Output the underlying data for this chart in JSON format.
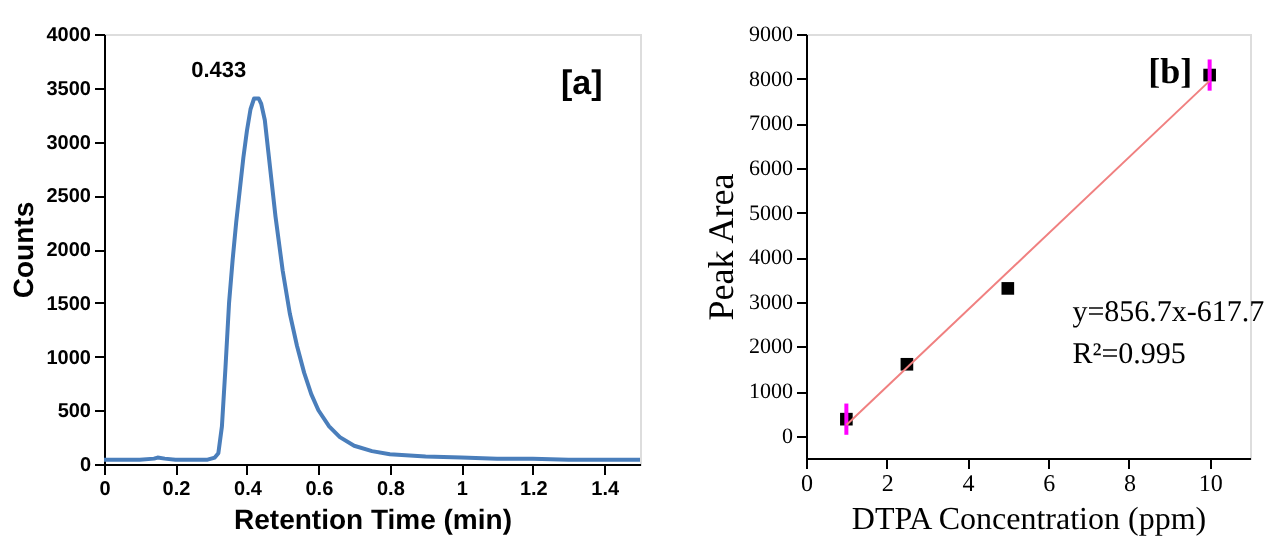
{
  "chart_data": [
    {
      "type": "line",
      "xlabel": "Retention Time (min)",
      "ylabel": "Counts",
      "xlim": [
        0,
        1.5
      ],
      "xticks": [
        0,
        0.2,
        0.4,
        0.6,
        0.8,
        1,
        1.2,
        1.4
      ],
      "ylim": [
        0,
        4000
      ],
      "yticks": [
        0,
        500,
        1000,
        1500,
        2000,
        2500,
        3000,
        3500,
        4000
      ],
      "grid": false,
      "line_style": "solid",
      "series": [
        {
          "color": "#4a7ebb",
          "x": [
            0,
            0.1,
            0.14,
            0.15,
            0.17,
            0.2,
            0.25,
            0.29,
            0.31,
            0.32,
            0.33,
            0.34,
            0.35,
            0.36,
            0.37,
            0.38,
            0.39,
            0.4,
            0.41,
            0.42,
            0.433,
            0.44,
            0.45,
            0.46,
            0.47,
            0.48,
            0.5,
            0.52,
            0.54,
            0.56,
            0.58,
            0.6,
            0.63,
            0.66,
            0.7,
            0.75,
            0.8,
            0.9,
            1.0,
            1.1,
            1.2,
            1.3,
            1.4,
            1.5
          ],
          "values": [
            40,
            40,
            50,
            60,
            50,
            40,
            40,
            40,
            60,
            100,
            350,
            900,
            1500,
            1900,
            2250,
            2550,
            2850,
            3100,
            3300,
            3400,
            3400,
            3350,
            3200,
            2900,
            2600,
            2300,
            1800,
            1400,
            1100,
            850,
            650,
            500,
            350,
            250,
            170,
            120,
            90,
            70,
            60,
            50,
            50,
            40,
            40,
            40
          ]
        }
      ],
      "annotations": [
        {
          "text": "0.433",
          "x": 0.433,
          "y": 3400
        },
        "[a]"
      ]
    },
    {
      "type": "scatter",
      "xlabel": "DTPA Concentration (ppm)",
      "ylabel": "Peak Area",
      "xlim": [
        0,
        11
      ],
      "xticks": [
        0,
        2,
        4,
        6,
        8,
        10
      ],
      "ylim": [
        -500,
        9000
      ],
      "yticks": [
        0,
        1000,
        2000,
        3000,
        4000,
        5000,
        6000,
        7000,
        8000,
        9000
      ],
      "grid": false,
      "series": [
        {
          "color": "#000000",
          "x": [
            1,
            2.5,
            5,
            10
          ],
          "values": [
            370,
            1600,
            3300,
            8080
          ],
          "marker": "square",
          "errors": [
            350,
            null,
            null,
            350
          ]
        },
        {
          "type": "line",
          "color": "#f08080",
          "x": [
            1,
            10
          ],
          "values": [
            240,
            7950
          ],
          "line_style": "solid"
        }
      ],
      "annotations": [
        "[b]",
        "y=856.7x-617.7",
        "R²=0.995"
      ]
    }
  ]
}
